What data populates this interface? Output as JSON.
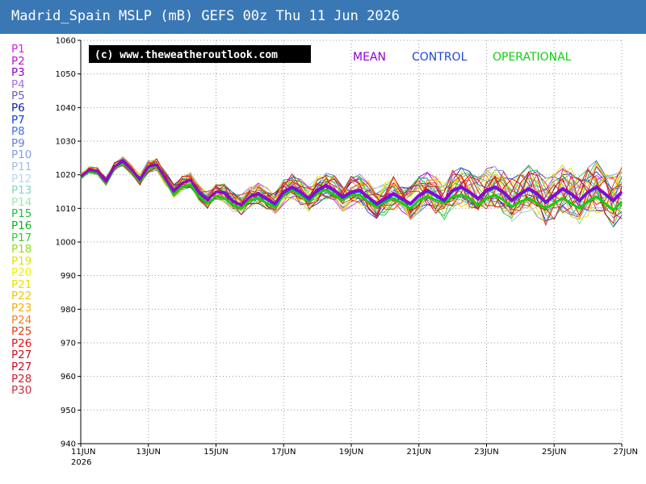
{
  "title": "Madrid_Spain MSLP (mB) GEFS 00z Thu 11 Jun 2026",
  "copyright": "(c) www.theweatheroutlook.com",
  "chart_data": {
    "type": "line",
    "ylim": [
      940,
      1060
    ],
    "yticks": [
      940,
      950,
      960,
      970,
      980,
      990,
      1000,
      1010,
      1020,
      1030,
      1040,
      1050,
      1060
    ],
    "xlim": [
      0,
      16
    ],
    "xtick_positions": [
      0,
      2,
      4,
      6,
      8,
      10,
      12,
      14,
      16
    ],
    "xtick_labels": [
      "11JUN",
      "13JUN",
      "15JUN",
      "17JUN",
      "19JUN",
      "21JUN",
      "23JUN",
      "25JUN",
      "27JUN"
    ],
    "x_year_label": "2026",
    "grid": true,
    "legend_position": "top",
    "x": [
      0,
      0.25,
      0.5,
      0.75,
      1,
      1.25,
      1.5,
      1.75,
      2,
      2.25,
      2.5,
      2.75,
      3,
      3.25,
      3.5,
      3.75,
      4,
      4.25,
      4.5,
      4.75,
      5,
      5.25,
      5.5,
      5.75,
      6,
      6.25,
      6.5,
      6.75,
      7,
      7.25,
      7.5,
      7.75,
      8,
      8.25,
      8.5,
      8.75,
      9,
      9.25,
      9.5,
      9.75,
      10,
      10.25,
      10.5,
      10.75,
      11,
      11.25,
      11.5,
      11.75,
      12,
      12.25,
      12.5,
      12.75,
      13,
      13.25,
      13.5,
      13.75,
      14,
      14.25,
      14.5,
      14.75,
      15,
      15.25,
      15.5,
      15.75,
      16
    ],
    "series": [
      {
        "name": "MEAN",
        "color": "#9400d3",
        "width": 3,
        "values": [
          1019.5,
          1021.5,
          1021.0,
          1018.0,
          1022.5,
          1024.0,
          1021.5,
          1018.5,
          1022.5,
          1023.0,
          1019.0,
          1015.0,
          1017.5,
          1018.5,
          1014.5,
          1012.5,
          1015.0,
          1014.5,
          1012.0,
          1011.0,
          1013.5,
          1014.5,
          1013.0,
          1011.5,
          1015.0,
          1016.5,
          1015.0,
          1013.0,
          1015.5,
          1017.0,
          1015.5,
          1013.5,
          1015.0,
          1015.5,
          1013.5,
          1011.5,
          1013.0,
          1014.5,
          1013.0,
          1011.5,
          1014.0,
          1015.5,
          1014.0,
          1012.5,
          1015.5,
          1016.5,
          1015.0,
          1013.0,
          1015.5,
          1016.5,
          1015.0,
          1012.5,
          1014.5,
          1016.0,
          1014.5,
          1012.0,
          1014.0,
          1016.0,
          1014.5,
          1012.5,
          1015.0,
          1016.5,
          1014.5,
          1012.5,
          1015.0
        ]
      },
      {
        "name": "CONTROL",
        "color": "#2044e0",
        "width": 2,
        "values": [
          1019.5,
          1021.5,
          1021.0,
          1018.5,
          1022.5,
          1024.5,
          1021.5,
          1019.0,
          1022.5,
          1023.0,
          1019.0,
          1015.5,
          1017.5,
          1018.5,
          1015.0,
          1013.0,
          1015.0,
          1015.0,
          1012.5,
          1011.0,
          1013.5,
          1014.0,
          1012.5,
          1011.0,
          1014.5,
          1016.0,
          1014.5,
          1012.5,
          1015.0,
          1016.5,
          1015.0,
          1013.0,
          1014.5,
          1015.0,
          1013.0,
          1011.0,
          1012.5,
          1014.0,
          1012.5,
          1011.0,
          1013.5,
          1015.0,
          1013.5,
          1012.0,
          1015.0,
          1016.0,
          1014.5,
          1012.5,
          1015.0,
          1016.0,
          1014.5,
          1012.0,
          1014.0,
          1015.5,
          1014.0,
          1011.5,
          1013.5,
          1015.5,
          1014.0,
          1012.0,
          1014.5,
          1016.0,
          1014.0,
          1012.0,
          1014.5
        ]
      },
      {
        "name": "OPERATIONAL",
        "color": "#10d010",
        "width": 3,
        "values": [
          1019.0,
          1021.0,
          1020.5,
          1017.5,
          1022.0,
          1023.5,
          1021.0,
          1018.0,
          1022.0,
          1022.5,
          1018.5,
          1014.0,
          1016.5,
          1017.0,
          1013.5,
          1011.5,
          1013.5,
          1013.0,
          1011.0,
          1010.0,
          1012.5,
          1013.0,
          1011.5,
          1010.5,
          1014.0,
          1015.5,
          1014.0,
          1012.0,
          1014.5,
          1015.5,
          1014.0,
          1012.5,
          1014.0,
          1014.0,
          1012.0,
          1010.5,
          1012.0,
          1013.0,
          1011.5,
          1010.0,
          1012.5,
          1013.5,
          1012.5,
          1011.5,
          1013.5,
          1014.0,
          1013.0,
          1011.0,
          1013.0,
          1014.0,
          1012.5,
          1010.5,
          1012.0,
          1013.0,
          1011.5,
          1010.0,
          1011.5,
          1013.0,
          1011.5,
          1010.0,
          1012.0,
          1013.5,
          1011.5,
          1009.5,
          1012.0
        ]
      }
    ],
    "members": [
      {
        "name": "P1",
        "color": "#e020e0"
      },
      {
        "name": "P2",
        "color": "#c010d0"
      },
      {
        "name": "P3",
        "color": "#9000c8"
      },
      {
        "name": "P4",
        "color": "#a070e0"
      },
      {
        "name": "P5",
        "color": "#7060b0"
      },
      {
        "name": "P6",
        "color": "#1020a0"
      },
      {
        "name": "P7",
        "color": "#1040d0"
      },
      {
        "name": "P8",
        "color": "#4070e0"
      },
      {
        "name": "P9",
        "color": "#6080d0"
      },
      {
        "name": "P10",
        "color": "#80a0e0"
      },
      {
        "name": "P11",
        "color": "#a0c0e8"
      },
      {
        "name": "P12",
        "color": "#b8d8f0"
      },
      {
        "name": "P13",
        "color": "#80d8c0"
      },
      {
        "name": "P14",
        "color": "#a0e8b0"
      },
      {
        "name": "P15",
        "color": "#20c040"
      },
      {
        "name": "P16",
        "color": "#10b020"
      },
      {
        "name": "P17",
        "color": "#30d030"
      },
      {
        "name": "P18",
        "color": "#90e020"
      },
      {
        "name": "P19",
        "color": "#e0e010"
      },
      {
        "name": "P20",
        "color": "#f0f000"
      },
      {
        "name": "P21",
        "color": "#f0e000"
      },
      {
        "name": "P22",
        "color": "#f0c800"
      },
      {
        "name": "P23",
        "color": "#f0b000"
      },
      {
        "name": "P24",
        "color": "#f08020"
      },
      {
        "name": "P25",
        "color": "#e04010"
      },
      {
        "name": "P26",
        "color": "#e01010"
      },
      {
        "name": "P27",
        "color": "#d01020"
      },
      {
        "name": "P27",
        "color": "#d00820"
      },
      {
        "name": "P28",
        "color": "#d02030"
      },
      {
        "name": "P30",
        "color": "#c83040"
      }
    ]
  }
}
